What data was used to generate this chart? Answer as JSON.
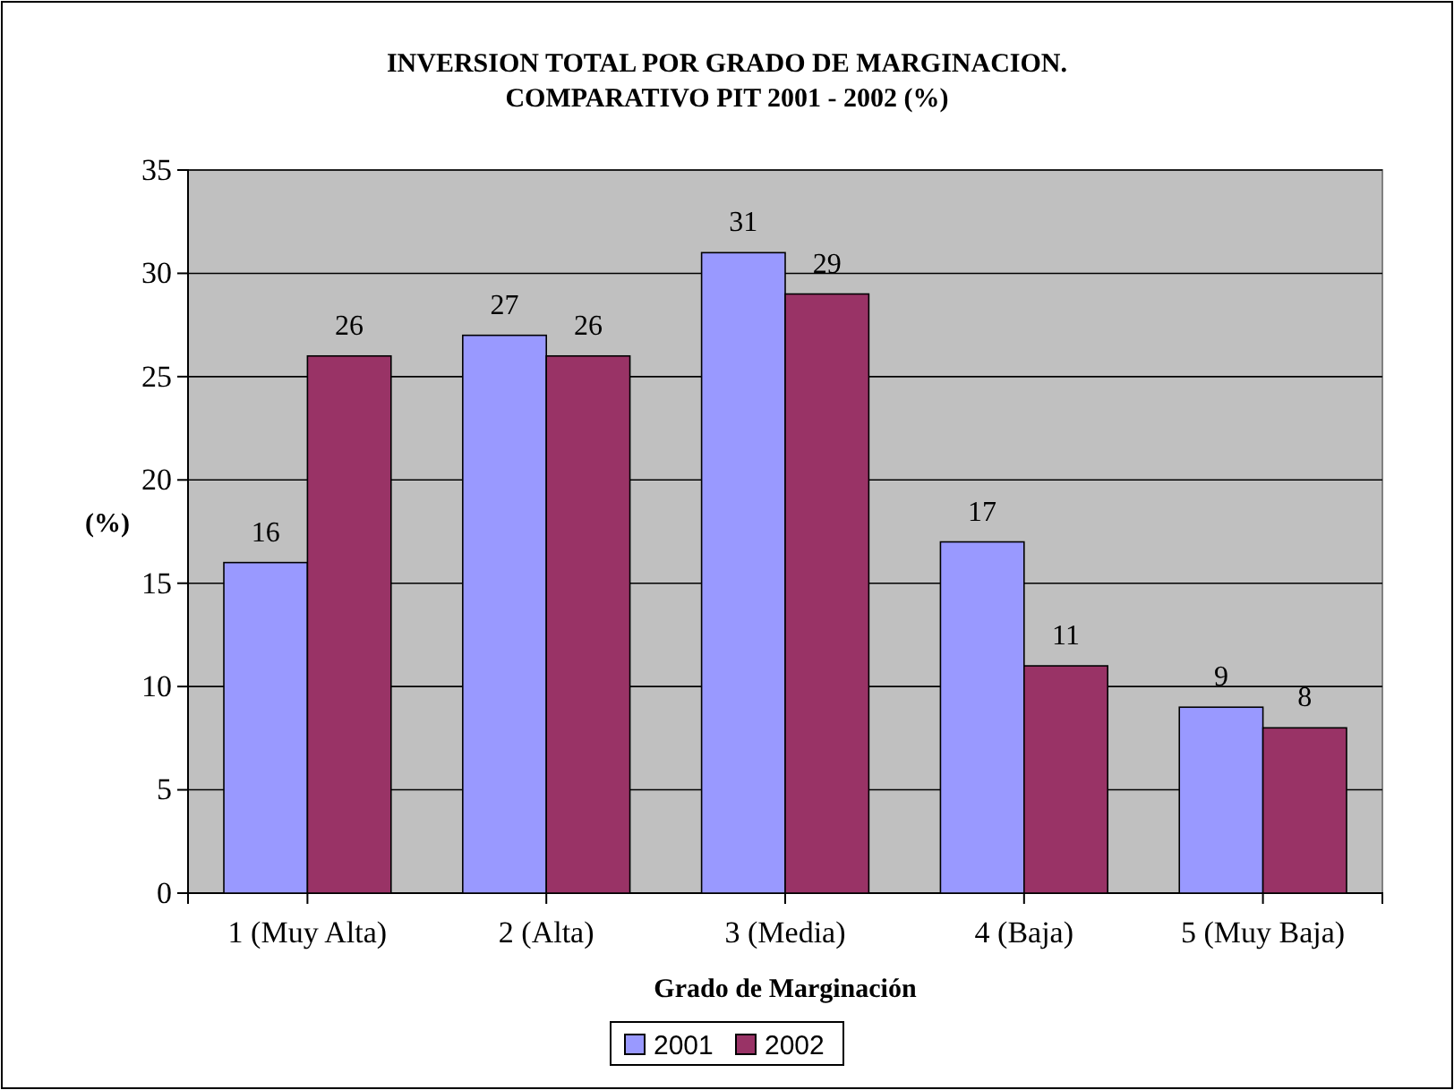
{
  "chart_data": {
    "type": "bar",
    "title": "INVERSION TOTAL POR GRADO DE MARGINACION.\nCOMPARATIVO PIT 2001 - 2002 (%)",
    "xlabel": "Grado de Marginación",
    "ylabel": "(%)",
    "categories": [
      "1 (Muy Alta)",
      "2 (Alta)",
      "3 (Media)",
      "4 (Baja)",
      "5 (Muy Baja)"
    ],
    "series": [
      {
        "name": "2001",
        "color": "#9999ff",
        "values": [
          16,
          27,
          31,
          17,
          9
        ]
      },
      {
        "name": "2002",
        "color": "#993366",
        "values": [
          26,
          26,
          29,
          11,
          8
        ]
      }
    ],
    "ylim": [
      0,
      35
    ],
    "yticks": [
      0,
      5,
      10,
      15,
      20,
      25,
      30,
      35
    ],
    "grid": "y",
    "legend": "bottom",
    "data_labels": true
  }
}
